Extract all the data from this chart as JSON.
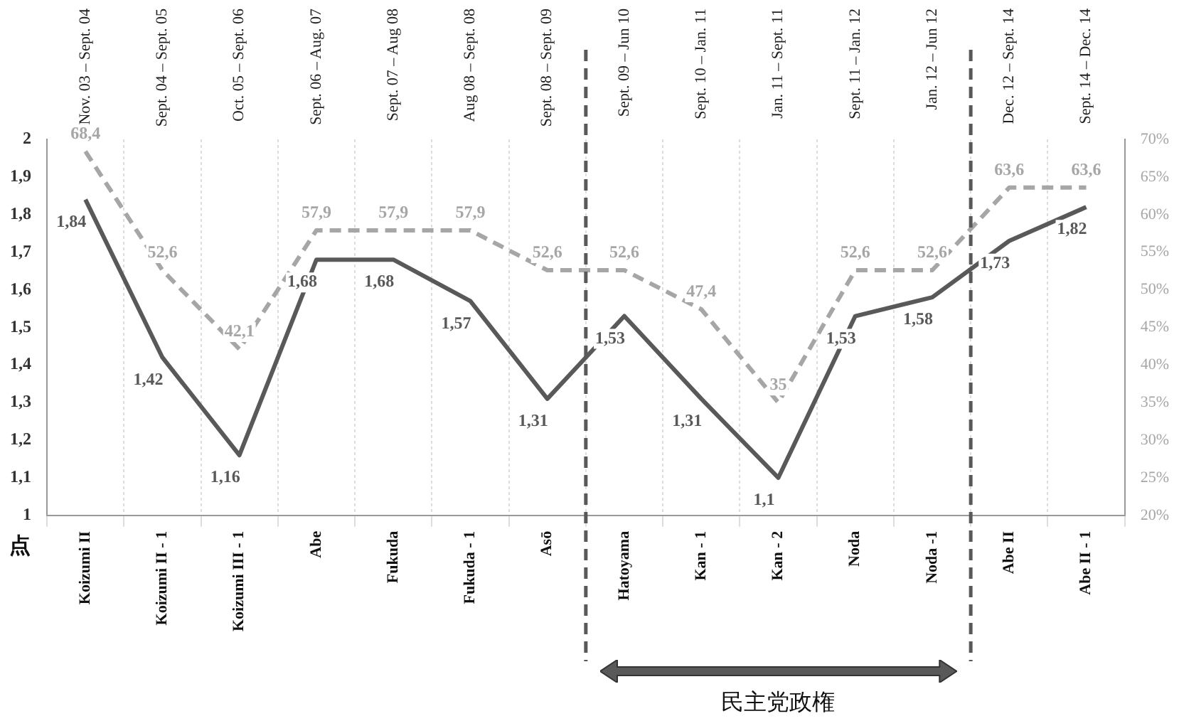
{
  "chart_data": {
    "type": "line",
    "ylabel": "点",
    "categories": [
      "Koizumi II",
      "Koizumi II - 1",
      "Koizumi III - 1",
      "Abe",
      "Fukuda",
      "Fukuda - 1",
      "Asō",
      "Hatoyama",
      "Kan - 1",
      "Kan - 2",
      "Noda",
      "Noda -1",
      "Abe II",
      "Abe II - 1"
    ],
    "series": [
      {
        "color": "#595959",
        "line_style": "solid",
        "values": [
          1.84,
          1.42,
          1.16,
          1.68,
          1.68,
          1.57,
          1.31,
          1.53,
          1.31,
          1.1,
          1.53,
          1.58,
          1.73,
          1.82
        ],
        "value_labels": [
          "1,84",
          "1,42",
          "1,16",
          "1,68",
          "1,68",
          "1,57",
          "1,31",
          "1,53",
          "1,31",
          "1,1",
          "1,53",
          "1,58",
          "1,73",
          "1,82"
        ]
      },
      {
        "color": "#a6a6a6",
        "line_style": "dashed",
        "axis": "y2",
        "values": [
          68.4,
          52.6,
          42.1,
          57.9,
          57.9,
          57.9,
          52.6,
          52.6,
          47.4,
          35,
          52.6,
          52.6,
          63.6,
          63.6
        ],
        "value_labels": [
          "68,4",
          "52,6",
          "42,1",
          "57,9",
          "57,9",
          "57,9",
          "52,6",
          "52,6",
          "47,4",
          "35",
          "52,6",
          "52,6",
          "63,6",
          "63,6"
        ]
      }
    ],
    "ylim": [
      1,
      2
    ],
    "yticks": [
      1,
      {
        "value": 1.1,
        "label": "1,1"
      },
      {
        "value": 1.2,
        "label": "1,2"
      },
      {
        "value": 1.3,
        "label": "1,3"
      },
      {
        "value": 1.4,
        "label": "1,4"
      },
      {
        "value": 1.5,
        "label": "1,5"
      },
      {
        "value": 1.6,
        "label": "1,6"
      },
      {
        "value": 1.7,
        "label": "1,7"
      },
      {
        "value": 1.8,
        "label": "1,8"
      },
      {
        "value": 1.9,
        "label": "1,9"
      },
      2
    ],
    "y2lim": [
      20,
      70
    ],
    "y2ticks": [
      {
        "value": 20,
        "label": "20%"
      },
      {
        "value": 25,
        "label": "25%"
      },
      {
        "value": 30,
        "label": "30%"
      },
      {
        "value": 35,
        "label": "35%"
      },
      {
        "value": 40,
        "label": "40%"
      },
      {
        "value": 45,
        "label": "45%"
      },
      {
        "value": 50,
        "label": "50%"
      },
      {
        "value": 55,
        "label": "55%"
      },
      {
        "value": 60,
        "label": "60%"
      },
      {
        "value": 65,
        "label": "65%"
      },
      {
        "value": 70,
        "label": "70%"
      }
    ],
    "grid": "x",
    "marker": "none",
    "legend": false,
    "annotations": [
      "Nov. 03 – Sept. 04",
      "Sept. 04 – Sept. 05",
      "Oct. 05 – Sept. 06",
      "Sept. 06 – Aug. 07",
      "Sept. 07 – Aug 08",
      "Aug 08 – Sept. 08",
      "Sept. 08 – Sept. 09",
      "Sept. 09 – Jun 10",
      "Sept. 10 – Jan. 11",
      "Jan. 11 – Sept. 11",
      "Sept. 11 – Jan. 12",
      "Jan. 12 – Jun 12",
      "Dec. 12 – Sept. 14",
      "Sept. 14 – Dec. 14",
      "民主党政権"
    ]
  }
}
